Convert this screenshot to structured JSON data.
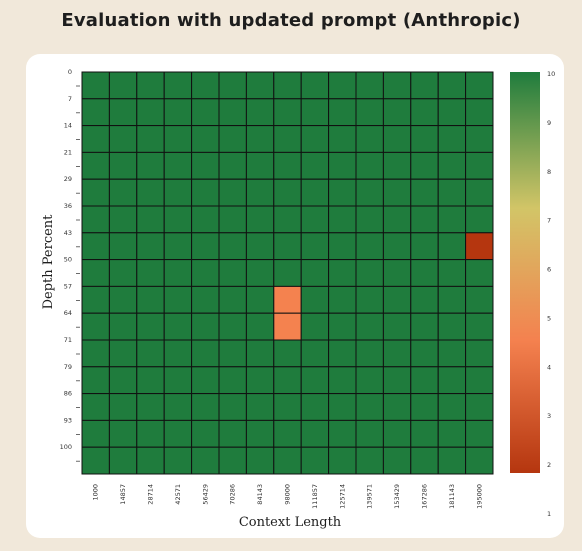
{
  "title": "Evaluation with updated prompt (Anthropic)",
  "chart_data": {
    "type": "heatmap",
    "title": "Evaluation with updated prompt (Anthropic)",
    "xlabel": "Context Length",
    "ylabel": "Depth Percent",
    "x_ticks": [
      "1000",
      "14857",
      "28714",
      "42571",
      "56429",
      "70286",
      "84143",
      "98000",
      "111857",
      "125714",
      "139571",
      "153429",
      "167286",
      "181143",
      "195000"
    ],
    "y_ticks": [
      "0",
      "7",
      "14",
      "21",
      "29",
      "36",
      "43",
      "50",
      "57",
      "64",
      "71",
      "79",
      "86",
      "93",
      "100"
    ],
    "colorbar_ticks": [
      "1",
      "2",
      "3",
      "4",
      "5",
      "6",
      "7",
      "8",
      "9",
      "10"
    ],
    "value_range": [
      1,
      10
    ],
    "colors": {
      "low": "#b5360f",
      "mid_low": "#f4814f",
      "mid": "#d2c567",
      "high": "#1f7c3d"
    },
    "values": [
      [
        10,
        10,
        10,
        10,
        10,
        10,
        10,
        10,
        10,
        10,
        10,
        10,
        10,
        10,
        10
      ],
      [
        10,
        10,
        10,
        10,
        10,
        10,
        10,
        10,
        10,
        10,
        10,
        10,
        10,
        10,
        10
      ],
      [
        10,
        10,
        10,
        10,
        10,
        10,
        10,
        10,
        10,
        10,
        10,
        10,
        10,
        10,
        10
      ],
      [
        10,
        10,
        10,
        10,
        10,
        10,
        10,
        10,
        10,
        10,
        10,
        10,
        10,
        10,
        10
      ],
      [
        10,
        10,
        10,
        10,
        10,
        10,
        10,
        10,
        10,
        10,
        10,
        10,
        10,
        10,
        10
      ],
      [
        10,
        10,
        10,
        10,
        10,
        10,
        10,
        10,
        10,
        10,
        10,
        10,
        10,
        10,
        10
      ],
      [
        10,
        10,
        10,
        10,
        10,
        10,
        10,
        10,
        10,
        10,
        10,
        10,
        10,
        10,
        1
      ],
      [
        10,
        10,
        10,
        10,
        10,
        10,
        10,
        10,
        10,
        10,
        10,
        10,
        10,
        10,
        10
      ],
      [
        10,
        10,
        10,
        10,
        10,
        10,
        10,
        4,
        10,
        10,
        10,
        10,
        10,
        10,
        10
      ],
      [
        10,
        10,
        10,
        10,
        10,
        10,
        10,
        4,
        10,
        10,
        10,
        10,
        10,
        10,
        10
      ],
      [
        10,
        10,
        10,
        10,
        10,
        10,
        10,
        10,
        10,
        10,
        10,
        10,
        10,
        10,
        10
      ],
      [
        10,
        10,
        10,
        10,
        10,
        10,
        10,
        10,
        10,
        10,
        10,
        10,
        10,
        10,
        10
      ],
      [
        10,
        10,
        10,
        10,
        10,
        10,
        10,
        10,
        10,
        10,
        10,
        10,
        10,
        10,
        10
      ],
      [
        10,
        10,
        10,
        10,
        10,
        10,
        10,
        10,
        10,
        10,
        10,
        10,
        10,
        10,
        10
      ],
      [
        10,
        10,
        10,
        10,
        10,
        10,
        10,
        10,
        10,
        10,
        10,
        10,
        10,
        10,
        10
      ]
    ]
  }
}
